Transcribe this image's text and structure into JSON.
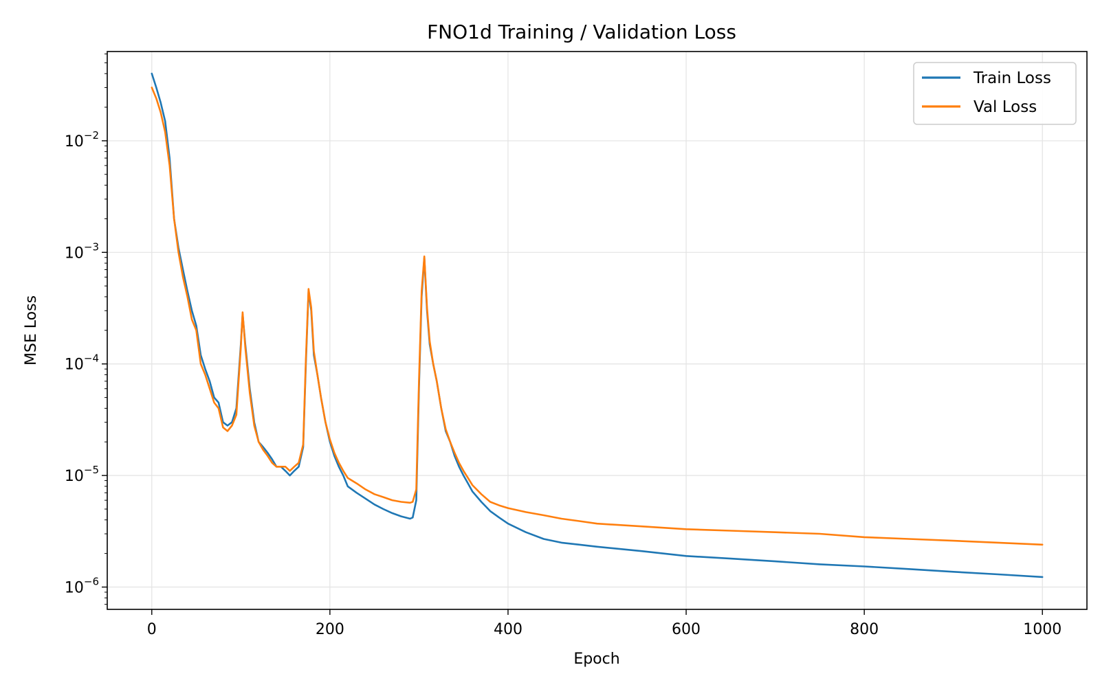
{
  "chart_data": {
    "type": "line",
    "title": "FNO1d Training / Validation Loss",
    "xlabel": "Epoch",
    "ylabel": "MSE Loss",
    "xlim": [
      -50,
      1050
    ],
    "ylim_log10": [
      -6.2,
      -1.2
    ],
    "yscale": "log",
    "grid": true,
    "legend_position": "top-right",
    "x_ticks": [
      0,
      200,
      400,
      600,
      800,
      1000
    ],
    "y_ticks": [
      {
        "base": "10",
        "exp": "−6",
        "value": -6
      },
      {
        "base": "10",
        "exp": "−5",
        "value": -5
      },
      {
        "base": "10",
        "exp": "−4",
        "value": -4
      },
      {
        "base": "10",
        "exp": "−3",
        "value": -3
      },
      {
        "base": "10",
        "exp": "−2",
        "value": -2
      }
    ],
    "series": [
      {
        "name": "Train Loss",
        "color": "#1f77b4",
        "x": [
          0,
          5,
          10,
          15,
          20,
          25,
          30,
          35,
          40,
          45,
          50,
          55,
          60,
          65,
          70,
          75,
          80,
          85,
          90,
          95,
          100,
          102,
          105,
          110,
          115,
          120,
          125,
          130,
          135,
          140,
          145,
          150,
          155,
          160,
          165,
          170,
          173,
          176,
          179,
          182,
          186,
          190,
          195,
          200,
          205,
          210,
          215,
          220,
          230,
          240,
          250,
          260,
          270,
          280,
          290,
          293,
          297,
          300,
          303,
          306,
          309,
          312,
          316,
          320,
          325,
          330,
          335,
          340,
          345,
          350,
          355,
          360,
          370,
          380,
          390,
          400,
          420,
          440,
          460,
          480,
          500,
          550,
          600,
          650,
          700,
          750,
          800,
          850,
          900,
          950,
          1000
        ],
        "y": [
          0.04,
          0.03,
          0.022,
          0.015,
          0.007,
          0.002,
          0.0011,
          0.0007,
          0.00045,
          0.0003,
          0.00022,
          0.00012,
          9e-05,
          7e-05,
          5e-05,
          4.5e-05,
          3e-05,
          2.8e-05,
          3e-05,
          4e-05,
          0.00015,
          0.00028,
          0.00015,
          6e-05,
          3e-05,
          2e-05,
          1.8e-05,
          1.6e-05,
          1.4e-05,
          1.2e-05,
          1.2e-05,
          1.1e-05,
          1e-05,
          1.1e-05,
          1.2e-05,
          1.8e-05,
          0.0001,
          0.00045,
          0.0003,
          0.00012,
          8e-05,
          5e-05,
          3e-05,
          2e-05,
          1.5e-05,
          1.2e-05,
          1e-05,
          8e-06,
          7e-06,
          6.2e-06,
          5.5e-06,
          5e-06,
          4.6e-06,
          4.3e-06,
          4.1e-06,
          4.2e-06,
          6e-06,
          6e-05,
          0.0004,
          0.0009,
          0.0003,
          0.00015,
          0.0001,
          7e-05,
          4e-05,
          2.5e-05,
          2e-05,
          1.5e-05,
          1.2e-05,
          1e-05,
          8.5e-06,
          7.2e-06,
          5.8e-06,
          4.8e-06,
          4.2e-06,
          3.7e-06,
          3.1e-06,
          2.7e-06,
          2.5e-06,
          2.4e-06,
          2.3e-06,
          2.1e-06,
          1.9e-06,
          1.8e-06,
          1.7e-06,
          1.6e-06,
          1.53e-06,
          1.45e-06,
          1.37e-06,
          1.3e-06,
          1.23e-06
        ]
      },
      {
        "name": "Val Loss",
        "color": "#ff7f0e",
        "x": [
          0,
          5,
          10,
          15,
          20,
          25,
          30,
          35,
          40,
          45,
          50,
          55,
          60,
          65,
          70,
          75,
          80,
          85,
          90,
          95,
          100,
          102,
          105,
          110,
          115,
          120,
          125,
          130,
          135,
          140,
          145,
          150,
          155,
          160,
          165,
          170,
          173,
          176,
          179,
          182,
          186,
          190,
          195,
          200,
          205,
          210,
          215,
          220,
          230,
          240,
          250,
          260,
          270,
          280,
          290,
          293,
          297,
          300,
          303,
          306,
          309,
          312,
          316,
          320,
          325,
          330,
          335,
          340,
          345,
          350,
          355,
          360,
          370,
          380,
          390,
          400,
          420,
          440,
          460,
          480,
          500,
          550,
          600,
          650,
          700,
          750,
          800,
          850,
          900,
          950,
          1000
        ],
        "y": [
          0.03,
          0.024,
          0.018,
          0.012,
          0.006,
          0.002,
          0.001,
          0.0006,
          0.0004,
          0.00025,
          0.0002,
          0.0001,
          8e-05,
          6e-05,
          4.5e-05,
          4e-05,
          2.7e-05,
          2.5e-05,
          2.8e-05,
          3.5e-05,
          0.00014,
          0.00029,
          0.00014,
          5.5e-05,
          2.8e-05,
          2e-05,
          1.7e-05,
          1.5e-05,
          1.3e-05,
          1.2e-05,
          1.2e-05,
          1.2e-05,
          1.1e-05,
          1.2e-05,
          1.3e-05,
          1.9e-05,
          0.00011,
          0.00047,
          0.00032,
          0.00013,
          8e-05,
          5e-05,
          3e-05,
          2.1e-05,
          1.6e-05,
          1.3e-05,
          1.1e-05,
          9.5e-06,
          8.5e-06,
          7.5e-06,
          6.8e-06,
          6.4e-06,
          6e-06,
          5.8e-06,
          5.7e-06,
          5.8e-06,
          7.5e-06,
          7e-05,
          0.00045,
          0.00092,
          0.00032,
          0.00016,
          0.0001,
          7e-05,
          4e-05,
          2.6e-05,
          2e-05,
          1.6e-05,
          1.3e-05,
          1.1e-05,
          9.5e-06,
          8.2e-06,
          6.8e-06,
          5.8e-06,
          5.4e-06,
          5.1e-06,
          4.7e-06,
          4.4e-06,
          4.1e-06,
          3.9e-06,
          3.7e-06,
          3.5e-06,
          3.3e-06,
          3.2e-06,
          3.1e-06,
          3e-06,
          2.8e-06,
          2.7e-06,
          2.6e-06,
          2.5e-06,
          2.4e-06
        ]
      }
    ]
  }
}
